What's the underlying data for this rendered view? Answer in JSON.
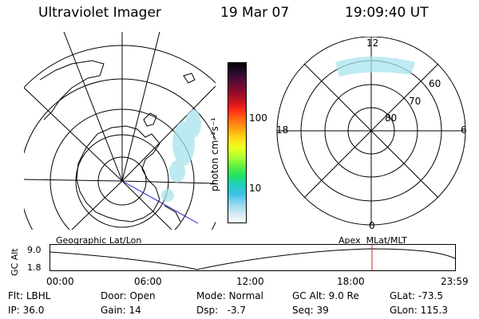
{
  "header": {
    "instrument": "Ultraviolet Imager",
    "date": "19 Mar 07",
    "time": "19:09:40 UT"
  },
  "geo_panel": {
    "caption": "Geographic Lat/Lon"
  },
  "colorbar": {
    "unit_label": "photon cm⁻²s⁻¹",
    "tick_labels": [
      "100",
      "10"
    ],
    "colors": [
      "#000000",
      "#2a0a30",
      "#5a0a38",
      "#8a0a2a",
      "#c01020",
      "#ff2a1a",
      "#ff6a10",
      "#ffa010",
      "#ffd818",
      "#f0ff20",
      "#b0ff30",
      "#60f040",
      "#20e060",
      "#20d0c0",
      "#40c0e8",
      "#90d8f0",
      "#cfe8f0",
      "#ffffff"
    ]
  },
  "polar_panel": {
    "caption": "Apex  MLat/MLT",
    "mlt_labels": {
      "top": "12",
      "bottom": "0",
      "left": "18",
      "right": "6"
    },
    "lat_labels": [
      "60",
      "70",
      "80"
    ]
  },
  "altitude_strip": {
    "axis_label": "GC Alt",
    "y_ticks": [
      "9.0",
      "1.8"
    ],
    "x_ticks": [
      "00:00",
      "06:00",
      "12:00",
      "18:00",
      "23:59"
    ],
    "marker_color": "#cc2222"
  },
  "status": [
    {
      "label": "Flt:",
      "value": "LBHL"
    },
    {
      "label": "Door:",
      "value": "Open"
    },
    {
      "label": "Mode:",
      "value": "Normal"
    },
    {
      "label": "GC Alt:",
      "value": "9.0 Re"
    },
    {
      "label": "GLat:",
      "value": "-73.5"
    },
    {
      "label": "IP:",
      "value": "36.0"
    },
    {
      "label": "Gain:",
      "value": "14"
    },
    {
      "label": "Dsp:",
      "value": "  -3.7"
    },
    {
      "label": "Seq:",
      "value": "39"
    },
    {
      "label": "GLon:",
      "value": "115.3"
    }
  ]
}
